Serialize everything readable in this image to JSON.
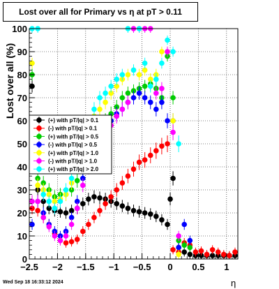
{
  "title": "Lost over all for Primary vs    η at pT > 0.11",
  "footer": "Wed Sep 18 16:33:12 2024",
  "chart_data": {
    "type": "scatter",
    "title": "Lost over all for Primary vs    η at pT > 0.11",
    "xlabel": "η",
    "ylabel": "Lost over all (%)",
    "xlim": [
      -2.5,
      1.2
    ],
    "ylim": [
      0,
      100
    ],
    "x_ticks": [
      -2.5,
      -2,
      -1.5,
      -1,
      -0.5,
      0,
      0.5,
      1
    ],
    "x_tick_labels": [
      "−2.5",
      "−2",
      "−1.5",
      "−1",
      "−0.5",
      "0",
      "0.5",
      "1"
    ],
    "y_ticks": [
      0,
      10,
      20,
      30,
      40,
      50,
      60,
      70,
      80,
      90,
      100
    ],
    "y_tick_labels": [
      "0",
      "10",
      "20",
      "30",
      "40",
      "50",
      "60",
      "70",
      "80",
      "90",
      "100"
    ],
    "grid": true,
    "legend_position": "left-middle",
    "series": [
      {
        "name": "(+) with pT/|q| > 0.1",
        "color": "#000000",
        "x": [
          -2.45,
          -2.35,
          -2.25,
          -2.15,
          -2.05,
          -1.95,
          -1.85,
          -1.75,
          -1.65,
          -1.55,
          -1.45,
          -1.35,
          -1.25,
          -1.15,
          -1.05,
          -0.95,
          -0.85,
          -0.75,
          -0.65,
          -0.55,
          -0.45,
          -0.35,
          -0.25,
          -0.15,
          -0.05,
          0.0,
          0.05,
          0.15,
          0.25,
          0.35,
          0.45,
          0.55,
          0.65,
          0.75,
          0.85,
          0.95,
          1.05,
          1.15
        ],
        "y": [
          75,
          30,
          25,
          22,
          21,
          20.5,
          20,
          21,
          22,
          24,
          26,
          27,
          26.5,
          26,
          25,
          24,
          23,
          22,
          21,
          20.5,
          20,
          19.5,
          18.5,
          17,
          15,
          26,
          35,
          5,
          3,
          2,
          1.5,
          1.5,
          1.5,
          1.5,
          1.5,
          1.5,
          1.5,
          1.5
        ]
      },
      {
        "name": "(-) with pT/|q| > 0.1",
        "color": "#ff0000",
        "x": [
          -2.45,
          -2.35,
          -2.25,
          -2.15,
          -2.05,
          -1.95,
          -1.85,
          -1.75,
          -1.65,
          -1.55,
          -1.45,
          -1.35,
          -1.25,
          -1.15,
          -1.05,
          -0.95,
          -0.85,
          -0.75,
          -0.65,
          -0.55,
          -0.45,
          -0.35,
          -0.25,
          -0.15,
          -0.05,
          0.05,
          0.15,
          0.25,
          0.35,
          0.45,
          0.55,
          0.65,
          0.75,
          0.85,
          0.95,
          1.05,
          1.15
        ],
        "y": [
          22,
          21,
          18,
          15,
          11,
          8,
          7,
          7.5,
          8.5,
          12,
          15,
          18,
          21,
          24,
          27,
          30,
          33,
          36,
          39,
          42,
          43,
          45,
          47,
          49,
          50,
          4,
          3,
          7,
          6,
          3,
          3.5,
          2,
          4,
          3,
          2,
          1.5,
          3
        ]
      },
      {
        "name": "(+) with pT/|q| > 0.5",
        "color": "#00cc00",
        "x": [
          -2.45,
          -2.35,
          -2.25,
          -2.15,
          -2.05,
          -1.95,
          -1.85,
          -1.75,
          -1.65,
          -1.55,
          -1.45,
          -1.35,
          -1.25,
          -1.15,
          -1.05,
          -0.95,
          -0.85,
          -0.75,
          -0.65,
          -0.55,
          -0.45,
          -0.35,
          -0.25,
          -0.15,
          -0.05,
          0.05,
          0.15,
          0.25,
          0.35
        ],
        "y": [
          80,
          35,
          33,
          30,
          27,
          28,
          28,
          30,
          34,
          38,
          45,
          52,
          58,
          60,
          63,
          66,
          70,
          72,
          73,
          74,
          75,
          76,
          74,
          70,
          88,
          70,
          8,
          6,
          5
        ]
      },
      {
        "name": "(-) with pT/|q| > 0.5",
        "color": "#0000ff",
        "x": [
          -2.45,
          -2.35,
          -2.25,
          -2.15,
          -2.05,
          -1.95,
          -1.85,
          -1.75,
          -1.65,
          -1.55,
          -1.45,
          -1.35,
          -1.25,
          -1.15,
          -1.05,
          -0.95,
          -0.85,
          -0.75,
          -0.65,
          -0.55,
          -0.45,
          -0.35,
          -0.25,
          -0.15,
          -0.05,
          0.05,
          0.15,
          0.25,
          0.35
        ],
        "y": [
          15,
          25,
          20,
          15,
          12,
          10,
          12,
          18,
          25,
          35,
          42,
          50,
          55,
          58,
          60,
          63,
          65,
          68,
          70,
          72,
          70,
          68,
          65,
          68,
          60,
          60,
          5,
          15,
          8
        ]
      },
      {
        "name": "(+) with pT/|q| > 1.0",
        "color": "#ffff00",
        "x": [
          -2.45,
          -2.35,
          -2.25,
          -2.15,
          -2.05,
          -1.95,
          -1.85,
          -1.75,
          -1.65,
          -1.55,
          -1.45,
          -1.35,
          -1.25,
          -1.15,
          -1.05,
          -0.95,
          -0.85,
          -0.75,
          -0.65,
          -0.55,
          -0.45,
          -0.35,
          -0.25,
          -0.15,
          -0.05,
          0.05,
          0.15
        ],
        "y": [
          85,
          32,
          30,
          28,
          25,
          26,
          28,
          33,
          40,
          48,
          55,
          62,
          65,
          68,
          72,
          75,
          78,
          80,
          82,
          80,
          82,
          78,
          80,
          90,
          90,
          60,
          2
        ]
      },
      {
        "name": "(-) with pT/|q| > 1.0",
        "color": "#ff00ff",
        "x": [
          -2.45,
          -2.35,
          -2.25,
          -2.15,
          -2.05,
          -1.95,
          -1.85,
          -1.75,
          -1.65,
          -1.55,
          -1.45,
          -1.35,
          -1.25,
          -1.15,
          -1.05,
          -0.95,
          -0.85,
          -0.75,
          -0.65,
          -0.55,
          -0.45,
          -0.35,
          -0.25,
          -0.15,
          -0.05,
          0.05,
          0.15
        ],
        "y": [
          25,
          25,
          18,
          14,
          10,
          8,
          10,
          15,
          22,
          32,
          40,
          45,
          50,
          53,
          58,
          62,
          65,
          68,
          100,
          100,
          100,
          100,
          72,
          74,
          90,
          55,
          10
        ]
      },
      {
        "name": "(+) with pT/|q| > 2.0",
        "color": "#00ffff",
        "x": [
          -2.45,
          -2.35,
          -2.25,
          -2.15,
          -2.05,
          -1.95,
          -1.85,
          -1.75,
          -1.65,
          -1.55,
          -1.45,
          -1.35,
          -1.25,
          -1.15,
          -1.05,
          -0.95,
          -0.85,
          -0.75,
          -0.65,
          -0.55,
          -0.45,
          -0.35,
          -0.25,
          -0.15,
          -0.05,
          0.05,
          0.15
        ],
        "y": [
          100,
          100,
          28,
          25,
          22,
          25,
          30,
          35,
          40,
          50,
          58,
          65,
          70,
          72,
          75,
          78,
          80,
          100,
          82,
          100,
          85,
          75,
          78,
          85,
          95,
          90,
          50
        ]
      }
    ]
  }
}
